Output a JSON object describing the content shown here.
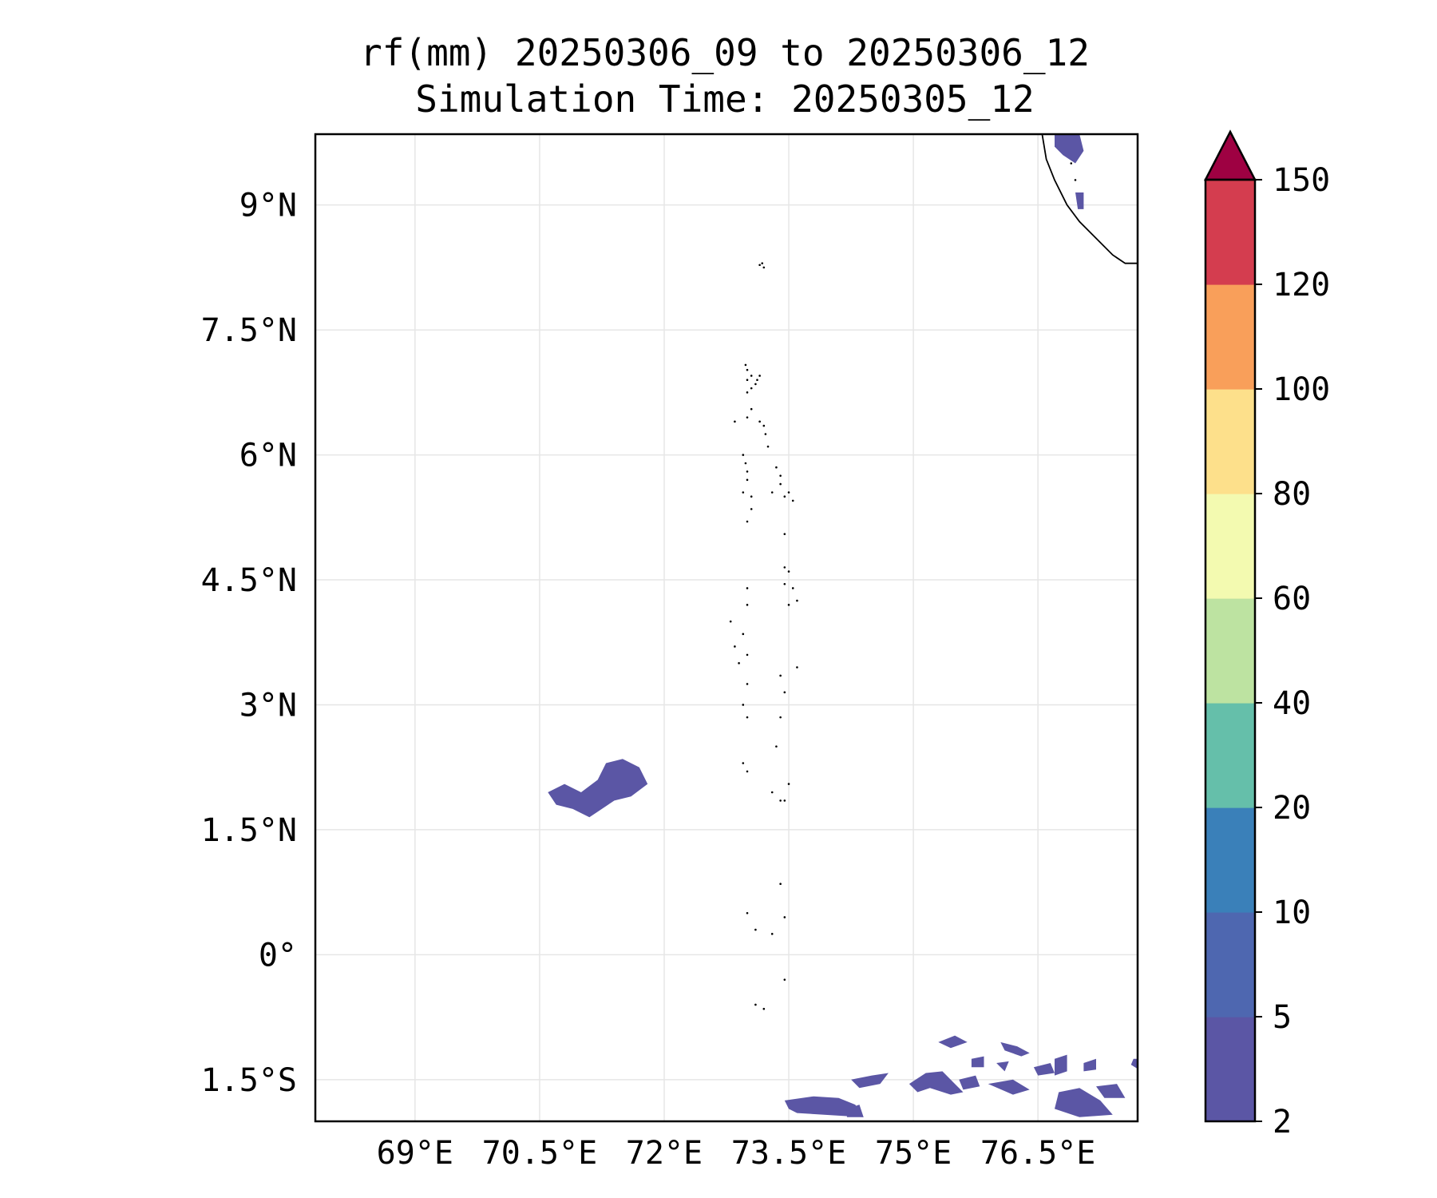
{
  "title_line1": "rf(mm) 20250306_09 to 20250306_12",
  "title_line2": "Simulation Time: 20250305_12",
  "map": {
    "lon_range": [
      67.8,
      77.7
    ],
    "lat_range": [
      -2.0,
      9.85
    ],
    "lon_ticks": [
      69,
      70.5,
      72,
      73.5,
      75,
      76.5
    ],
    "lon_tick_labels": [
      "69°E",
      "70.5°E",
      "72°E",
      "73.5°E",
      "75°E",
      "76.5°E"
    ],
    "lat_ticks": [
      9,
      7.5,
      6,
      4.5,
      3,
      1.5,
      0,
      -1.5
    ],
    "lat_tick_labels": [
      "9°N",
      "7.5°N",
      "6°N",
      "4.5°N",
      "3°N",
      "1.5°N",
      "0°",
      "1.5°S"
    ],
    "gridlines": true,
    "rain_color": "#5b56a5",
    "coast_color": "#000000",
    "rain_areas": [
      {
        "name": "rain-cluster-west",
        "lonlat": [
          [
            70.6,
            1.95
          ],
          [
            70.8,
            2.05
          ],
          [
            71.0,
            1.95
          ],
          [
            71.2,
            2.1
          ],
          [
            71.3,
            2.3
          ],
          [
            71.5,
            2.35
          ],
          [
            71.7,
            2.25
          ],
          [
            71.8,
            2.05
          ],
          [
            71.6,
            1.9
          ],
          [
            71.4,
            1.85
          ],
          [
            71.1,
            1.65
          ],
          [
            70.9,
            1.75
          ],
          [
            70.7,
            1.8
          ]
        ]
      },
      {
        "name": "rain-kerala-north",
        "lonlat": [
          [
            76.7,
            9.85
          ],
          [
            77.0,
            9.85
          ],
          [
            77.05,
            9.65
          ],
          [
            76.95,
            9.5
          ],
          [
            76.8,
            9.6
          ],
          [
            76.7,
            9.7
          ]
        ]
      },
      {
        "name": "rain-kerala-streak",
        "lonlat": [
          [
            76.95,
            9.15
          ],
          [
            77.05,
            9.15
          ],
          [
            77.05,
            8.95
          ],
          [
            76.98,
            8.95
          ]
        ]
      },
      {
        "name": "rain-south-1",
        "lonlat": [
          [
            73.45,
            -1.75
          ],
          [
            73.8,
            -1.7
          ],
          [
            74.1,
            -1.72
          ],
          [
            74.3,
            -1.8
          ],
          [
            74.4,
            -1.95
          ],
          [
            73.6,
            -1.9
          ],
          [
            73.5,
            -1.85
          ]
        ]
      },
      {
        "name": "rain-south-2",
        "lonlat": [
          [
            74.25,
            -1.5
          ],
          [
            74.5,
            -1.45
          ],
          [
            74.7,
            -1.42
          ],
          [
            74.6,
            -1.55
          ],
          [
            74.35,
            -1.6
          ]
        ]
      },
      {
        "name": "rain-south-3",
        "lonlat": [
          [
            74.95,
            -1.55
          ],
          [
            75.15,
            -1.42
          ],
          [
            75.35,
            -1.4
          ],
          [
            75.5,
            -1.55
          ],
          [
            75.6,
            -1.65
          ],
          [
            75.45,
            -1.68
          ],
          [
            75.2,
            -1.6
          ],
          [
            75.05,
            -1.65
          ]
        ]
      },
      {
        "name": "rain-south-4",
        "lonlat": [
          [
            75.3,
            -1.05
          ],
          [
            75.5,
            -0.97
          ],
          [
            75.65,
            -1.05
          ],
          [
            75.45,
            -1.12
          ]
        ]
      },
      {
        "name": "rain-south-5",
        "lonlat": [
          [
            75.55,
            -1.5
          ],
          [
            75.75,
            -1.45
          ],
          [
            75.8,
            -1.58
          ],
          [
            75.6,
            -1.62
          ]
        ]
      },
      {
        "name": "rain-south-6",
        "lonlat": [
          [
            75.9,
            -1.55
          ],
          [
            76.2,
            -1.5
          ],
          [
            76.4,
            -1.62
          ],
          [
            76.2,
            -1.68
          ]
        ]
      },
      {
        "name": "rain-south-7",
        "lonlat": [
          [
            76.05,
            -1.05
          ],
          [
            76.25,
            -1.1
          ],
          [
            76.4,
            -1.18
          ],
          [
            76.3,
            -1.22
          ],
          [
            76.1,
            -1.15
          ]
        ]
      },
      {
        "name": "rain-south-8",
        "lonlat": [
          [
            76.45,
            -1.35
          ],
          [
            76.65,
            -1.3
          ],
          [
            76.7,
            -1.42
          ],
          [
            76.5,
            -1.45
          ]
        ]
      },
      {
        "name": "rain-south-9",
        "lonlat": [
          [
            76.7,
            -1.25
          ],
          [
            76.85,
            -1.2
          ],
          [
            76.85,
            -1.4
          ],
          [
            76.7,
            -1.45
          ]
        ]
      },
      {
        "name": "rain-south-10",
        "lonlat": [
          [
            76.75,
            -1.65
          ],
          [
            77.0,
            -1.6
          ],
          [
            77.25,
            -1.75
          ],
          [
            77.4,
            -1.92
          ],
          [
            77.0,
            -1.95
          ],
          [
            76.7,
            -1.85
          ]
        ]
      },
      {
        "name": "rain-south-11",
        "lonlat": [
          [
            77.2,
            -1.58
          ],
          [
            77.45,
            -1.55
          ],
          [
            77.55,
            -1.72
          ],
          [
            77.3,
            -1.72
          ]
        ]
      },
      {
        "name": "rain-south-12",
        "lonlat": [
          [
            77.05,
            -1.3
          ],
          [
            77.2,
            -1.25
          ],
          [
            77.2,
            -1.38
          ],
          [
            77.05,
            -1.4
          ]
        ]
      },
      {
        "name": "rain-south-13",
        "lonlat": [
          [
            76.0,
            -1.3
          ],
          [
            76.15,
            -1.28
          ],
          [
            76.1,
            -1.4
          ]
        ]
      },
      {
        "name": "rain-south-14",
        "lonlat": [
          [
            75.7,
            -1.25
          ],
          [
            75.85,
            -1.22
          ],
          [
            75.85,
            -1.35
          ],
          [
            75.7,
            -1.35
          ]
        ]
      },
      {
        "name": "rain-south-15",
        "lonlat": [
          [
            77.65,
            -1.25
          ],
          [
            77.75,
            -1.25
          ],
          [
            77.75,
            -1.4
          ],
          [
            77.62,
            -1.32
          ]
        ]
      },
      {
        "name": "rain-south-16",
        "lonlat": [
          [
            74.2,
            -1.85
          ],
          [
            74.35,
            -1.8
          ],
          [
            74.4,
            -1.95
          ],
          [
            74.2,
            -1.95
          ]
        ]
      }
    ],
    "coastline": [
      [
        76.55,
        9.85
      ],
      [
        76.6,
        9.55
      ],
      [
        76.7,
        9.3
      ],
      [
        76.85,
        9.0
      ],
      [
        77.0,
        8.8
      ],
      [
        77.2,
        8.6
      ],
      [
        77.4,
        8.4
      ],
      [
        77.55,
        8.3
      ],
      [
        77.7,
        8.3
      ],
      [
        77.75,
        8.35
      ],
      [
        77.85,
        8.38
      ],
      [
        77.95,
        8.45
      ],
      [
        78.05,
        8.55
      ],
      [
        78.15,
        8.6
      ]
    ],
    "islands": [
      [
        73.15,
        8.28
      ],
      [
        73.18,
        8.3
      ],
      [
        72.98,
        7.08
      ],
      [
        73.0,
        7.02
      ],
      [
        73.05,
        6.95
      ],
      [
        73.0,
        6.9
      ],
      [
        73.12,
        6.9
      ],
      [
        73.15,
        6.95
      ],
      [
        73.1,
        6.85
      ],
      [
        73.05,
        6.8
      ],
      [
        73.0,
        6.75
      ],
      [
        72.85,
        6.4
      ],
      [
        73.05,
        6.55
      ],
      [
        73.0,
        6.45
      ],
      [
        73.15,
        6.4
      ],
      [
        73.2,
        6.35
      ],
      [
        73.22,
        6.25
      ],
      [
        73.25,
        6.1
      ],
      [
        72.95,
        6.0
      ],
      [
        72.98,
        5.9
      ],
      [
        73.0,
        5.8
      ],
      [
        73.0,
        5.7
      ],
      [
        72.95,
        5.55
      ],
      [
        73.05,
        5.5
      ],
      [
        73.05,
        5.35
      ],
      [
        73.0,
        5.2
      ],
      [
        73.35,
        5.85
      ],
      [
        73.4,
        5.75
      ],
      [
        73.4,
        5.65
      ],
      [
        73.3,
        5.55
      ],
      [
        73.45,
        5.5
      ],
      [
        73.5,
        5.55
      ],
      [
        73.55,
        5.45
      ],
      [
        73.45,
        5.05
      ],
      [
        73.45,
        4.65
      ],
      [
        73.5,
        4.6
      ],
      [
        73.45,
        4.45
      ],
      [
        73.55,
        4.4
      ],
      [
        73.6,
        4.25
      ],
      [
        73.5,
        4.2
      ],
      [
        73.0,
        4.4
      ],
      [
        73.0,
        4.2
      ],
      [
        72.95,
        3.85
      ],
      [
        73.0,
        3.6
      ],
      [
        72.9,
        3.5
      ],
      [
        73.0,
        3.25
      ],
      [
        72.95,
        3.0
      ],
      [
        73.0,
        2.85
      ],
      [
        73.4,
        3.35
      ],
      [
        73.45,
        3.15
      ],
      [
        73.4,
        2.85
      ],
      [
        73.35,
        2.5
      ],
      [
        72.95,
        2.3
      ],
      [
        73.0,
        2.2
      ],
      [
        73.5,
        2.05
      ],
      [
        73.45,
        1.85
      ],
      [
        73.4,
        1.85
      ],
      [
        73.3,
        1.95
      ],
      [
        73.4,
        0.85
      ],
      [
        73.45,
        0.45
      ],
      [
        73.0,
        0.5
      ],
      [
        73.1,
        0.3
      ],
      [
        73.3,
        0.25
      ],
      [
        73.45,
        -0.3
      ],
      [
        73.1,
        -0.6
      ],
      [
        73.2,
        -0.65
      ],
      [
        72.8,
        4.0
      ],
      [
        73.6,
        3.45
      ],
      [
        72.85,
        3.7
      ],
      [
        73.2,
        8.25
      ],
      [
        76.9,
        9.5
      ],
      [
        76.95,
        9.3
      ]
    ]
  },
  "colorbar": {
    "levels": [
      2,
      5,
      10,
      20,
      40,
      60,
      80,
      100,
      120,
      150
    ],
    "tick_labels": [
      "2",
      "5",
      "10",
      "20",
      "40",
      "60",
      "80",
      "100",
      "120",
      "150"
    ],
    "colors": [
      "#5b56a5",
      "#4e67b0",
      "#3a80b9",
      "#65bfaa",
      "#bde3a1",
      "#f3fab0",
      "#fde08b",
      "#f99f5a",
      "#d43d4f"
    ],
    "extend_color": "#9e0142",
    "extend": "max"
  }
}
